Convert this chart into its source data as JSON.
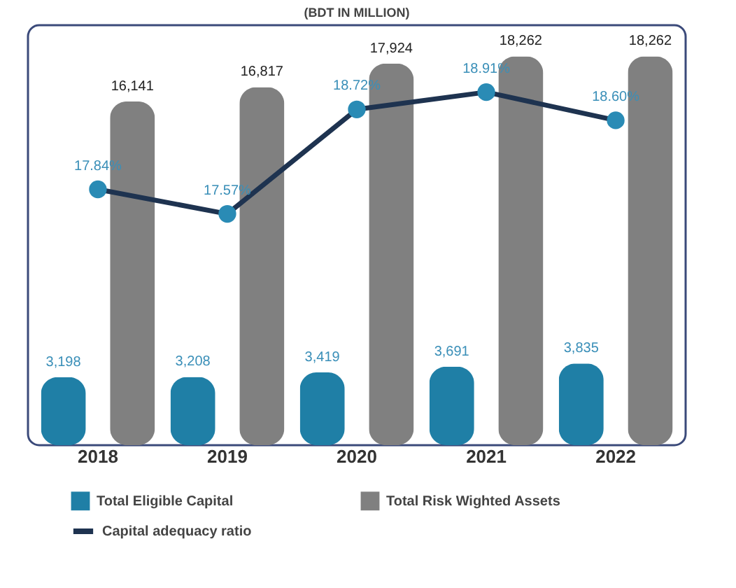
{
  "chart_data": {
    "type": "bar",
    "title": "(BDT IN MILLION)",
    "categories": [
      "2018",
      "2019",
      "2020",
      "2021",
      "2022"
    ],
    "series": [
      {
        "name": "Total Eligible Capital",
        "color": "#1f7fa6",
        "values": [
          3198,
          3208,
          3419,
          3691,
          3835
        ],
        "value_labels": [
          "3,198",
          "3,208",
          "3,419",
          "3,691",
          "3,835"
        ]
      },
      {
        "name": "Total Risk Wighted Assets",
        "color": "#808080",
        "values": [
          16141,
          16817,
          17924,
          18262,
          18262
        ],
        "value_labels": [
          "16,141",
          "16,817",
          "17,924",
          "18,262",
          "18,262"
        ]
      },
      {
        "name": "Capital adequacy ratio",
        "type": "line",
        "axis": "y2",
        "color": "#1e3350",
        "marker": "circle",
        "values": [
          17.84,
          17.57,
          18.72,
          18.91,
          18.6
        ],
        "value_labels": [
          "17.84%",
          "17.57%",
          "18.72%",
          "18.91%",
          "18.60%"
        ]
      }
    ],
    "legend": "bottom",
    "tick_labels": "x",
    "grid": false
  }
}
